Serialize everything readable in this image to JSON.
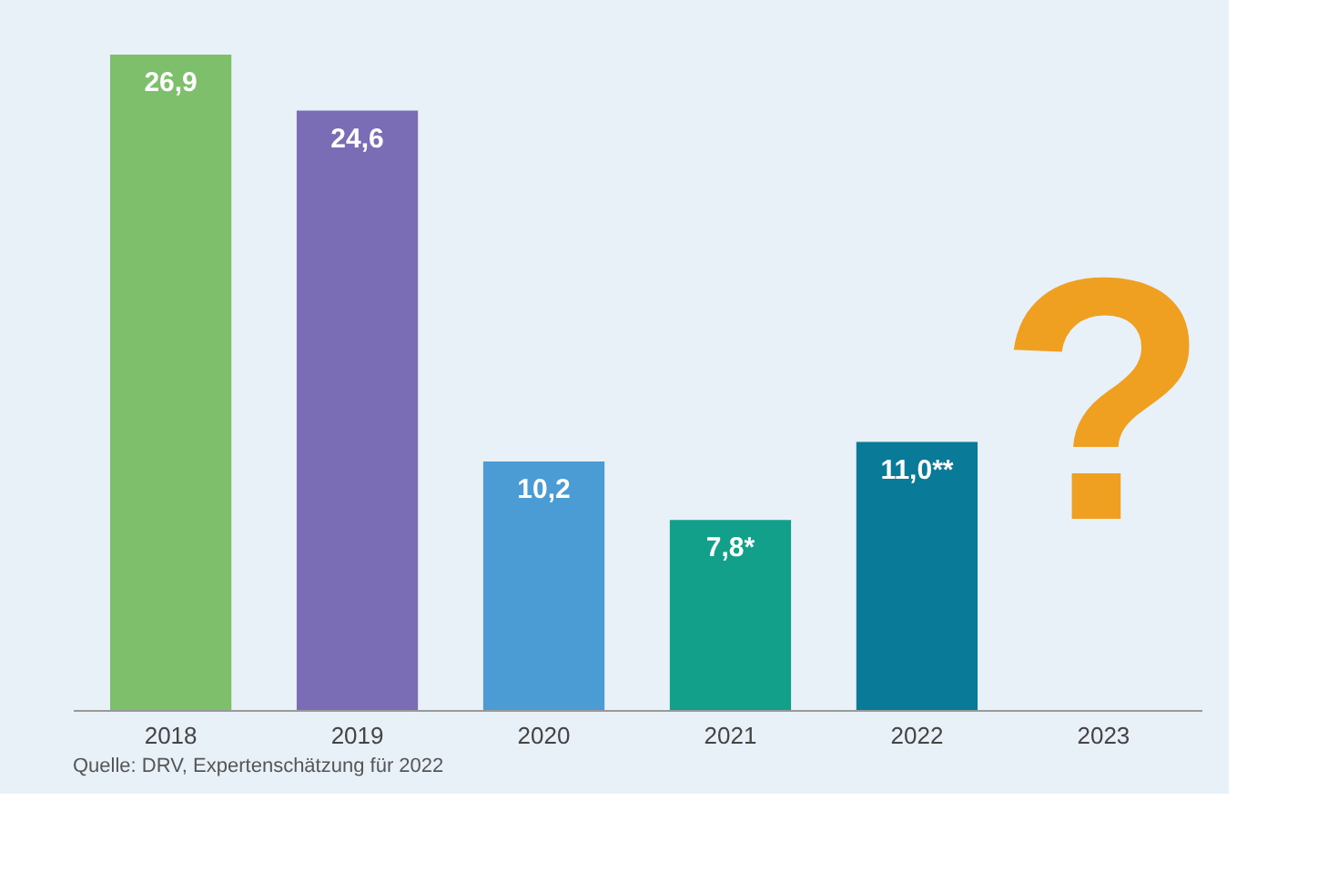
{
  "chart_data": {
    "type": "bar",
    "categories": [
      "2018",
      "2019",
      "2020",
      "2021",
      "2022",
      "2023"
    ],
    "values": [
      26.9,
      24.6,
      10.2,
      7.8,
      11.0,
      null
    ],
    "colors": [
      "#7dbf6a",
      "#7b6db5",
      "#4b9bd4",
      "#12a08a",
      "#0a7a99",
      "#f5c99a"
    ],
    "value_labels": [
      "26,9",
      "24,6",
      "10,2",
      "7,8*",
      "11,0**",
      null
    ],
    "annotations": [
      "?",
      "Quelle: DRV, Expertenschätzung für 2022"
    ],
    "grid": false
  }
}
